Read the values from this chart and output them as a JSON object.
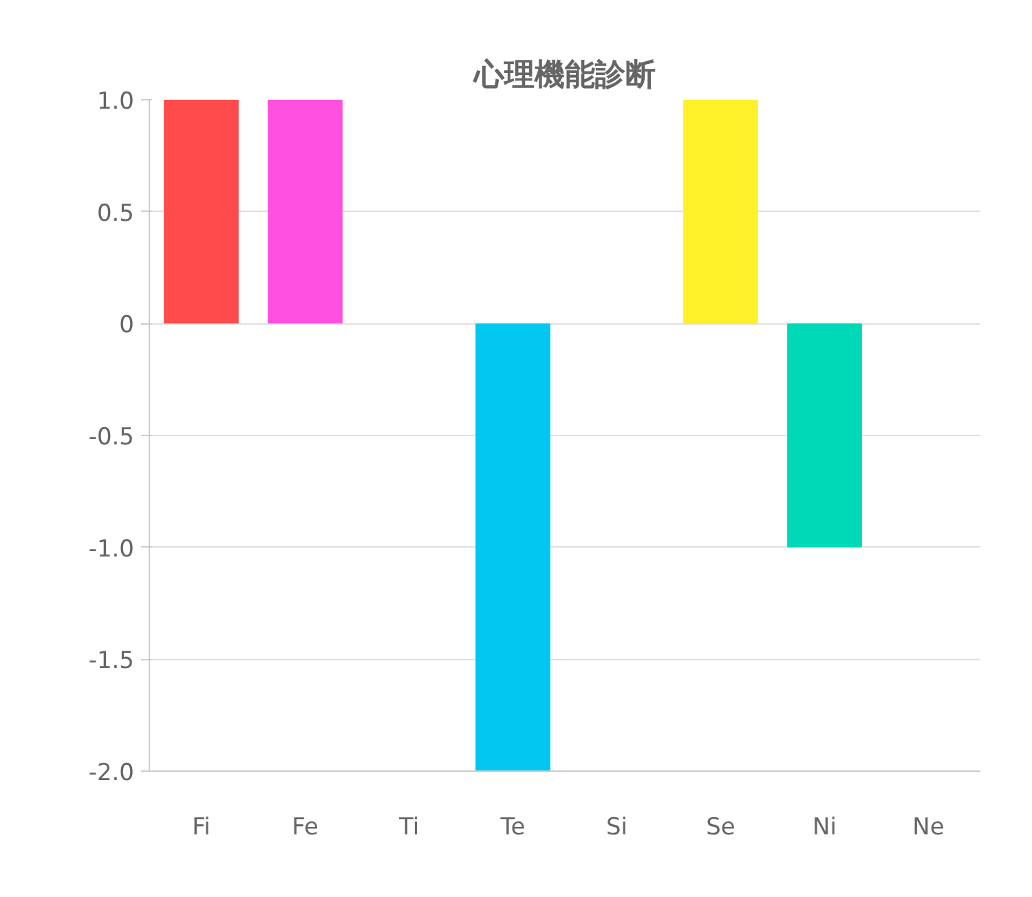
{
  "chart_data": {
    "type": "bar",
    "title": "心理機能診断",
    "categories": [
      "Fi",
      "Fe",
      "Ti",
      "Te",
      "Si",
      "Se",
      "Ni",
      "Ne"
    ],
    "values": [
      1,
      1,
      0,
      -2,
      0,
      1,
      -1,
      0
    ],
    "colors": [
      "#ff4b4b",
      "#ff50e0",
      "#cccccc",
      "#00c8f0",
      "#cccccc",
      "#fff02a",
      "#00d9b8",
      "#cccccc"
    ],
    "ylim": [
      -2,
      1
    ],
    "yticks": [
      {
        "value": 1,
        "label": "1.0"
      },
      {
        "value": 0.5,
        "label": "0.5"
      },
      0,
      {
        "value": -0.5,
        "label": "-0.5"
      },
      {
        "value": -1,
        "label": "-1.0"
      },
      {
        "value": -1.5,
        "label": "-1.5"
      },
      {
        "value": -2,
        "label": "-2.0"
      }
    ],
    "grid": "y"
  }
}
